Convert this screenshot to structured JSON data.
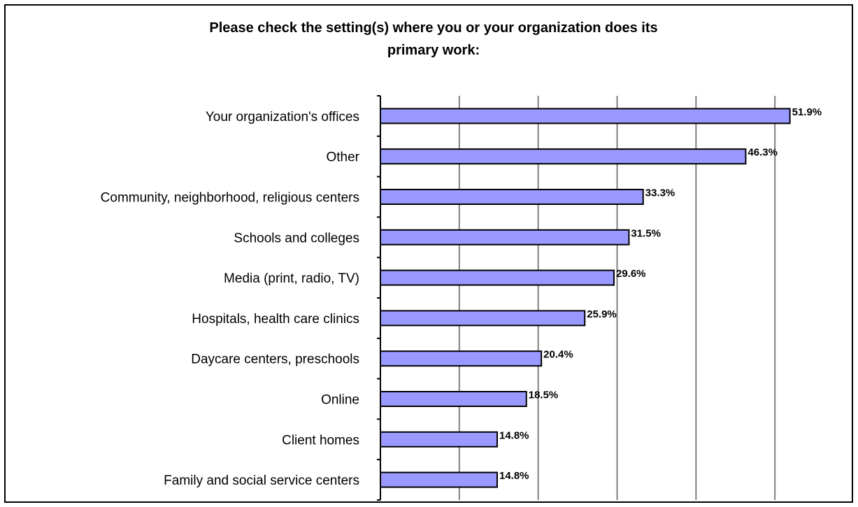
{
  "chart_data": {
    "type": "bar",
    "orientation": "horizontal",
    "title": [
      "Please check the setting(s) where you or your organization does its",
      "primary work:"
    ],
    "categories": [
      "Your organization's offices",
      "Other",
      "Community, neighborhood, religious centers",
      "Schools and colleges",
      "Media (print, radio, TV)",
      "Hospitals, health care clinics",
      "Daycare centers, preschools",
      "Online",
      "Client homes",
      "Family and social service centers"
    ],
    "values": [
      51.9,
      46.3,
      33.3,
      31.5,
      29.6,
      25.9,
      20.4,
      18.5,
      14.8,
      14.8
    ],
    "value_labels": [
      "51.9%",
      "46.3%",
      "33.3%",
      "31.5%",
      "29.6%",
      "25.9%",
      "20.4%",
      "18.5%",
      "14.8%",
      "14.8%"
    ],
    "xlim": [
      0,
      60
    ],
    "grid": true,
    "bar_color": "#9999ff",
    "legend": "none"
  }
}
